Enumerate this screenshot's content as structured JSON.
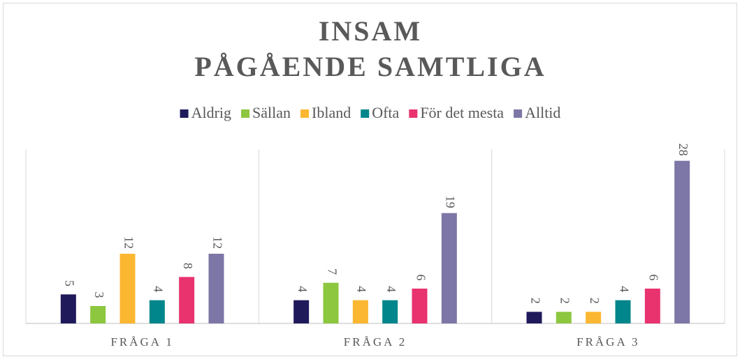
{
  "chart_data": {
    "type": "bar",
    "title": [
      "INSAM",
      "PÅGÅENDE SAMTLIGA"
    ],
    "categories": [
      "FRÅGA 1",
      "FRÅGA 2",
      "FRÅGA 3"
    ],
    "series": [
      {
        "name": "Aldrig",
        "color": "#1f1a5a",
        "values": [
          5,
          4,
          2
        ]
      },
      {
        "name": "Sällan",
        "color": "#8dc63f",
        "values": [
          3,
          7,
          2
        ]
      },
      {
        "name": "Ibland",
        "color": "#fbb731",
        "values": [
          12,
          4,
          2
        ]
      },
      {
        "name": "Ofta",
        "color": "#00868b",
        "values": [
          4,
          4,
          4
        ]
      },
      {
        "name": "För det mesta",
        "color": "#e8336f",
        "values": [
          8,
          6,
          6
        ]
      },
      {
        "name": "Alltid",
        "color": "#7c77a6",
        "values": [
          12,
          19,
          28
        ]
      }
    ],
    "ylim": [
      0,
      30
    ],
    "legend": "top"
  }
}
